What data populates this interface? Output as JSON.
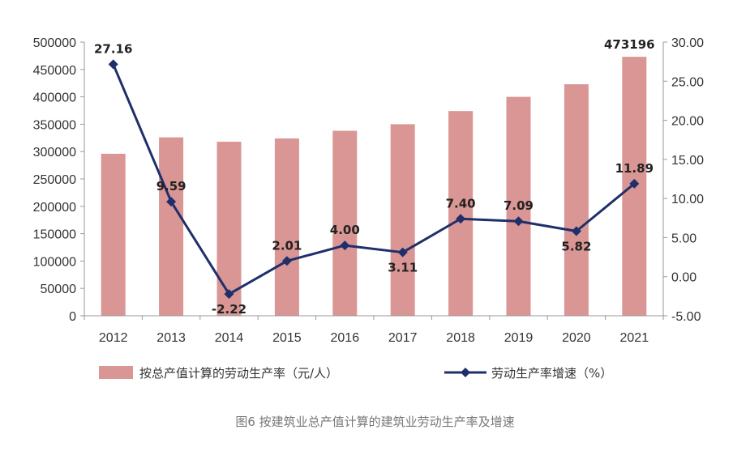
{
  "chart_data": {
    "type": "bar",
    "categories": [
      "2012",
      "2013",
      "2014",
      "2015",
      "2016",
      "2017",
      "2018",
      "2019",
      "2020",
      "2021"
    ],
    "series": [
      {
        "name": "按总产值计算的劳动生产率（元/人）",
        "type": "bar",
        "axis": "left",
        "color": "#d99694",
        "values": [
          296000,
          326000,
          318000,
          324000,
          338000,
          350000,
          374000,
          400000,
          423000,
          473196
        ]
      },
      {
        "name": "劳动生产率增速（%）",
        "type": "line",
        "axis": "right",
        "color": "#1f2f6b",
        "values": [
          27.16,
          9.59,
          -2.22,
          2.01,
          4.0,
          3.11,
          7.4,
          7.09,
          5.82,
          11.89
        ]
      }
    ],
    "bar_value_labels": [
      null,
      null,
      null,
      null,
      null,
      null,
      null,
      null,
      null,
      "473196"
    ],
    "line_value_labels": [
      "27.16",
      "9.59",
      "-2.22",
      "2.01",
      "4.00",
      "3.11",
      "7.40",
      "7.09",
      "5.82",
      "11.89"
    ],
    "y_left": {
      "lim": [
        0,
        500000
      ],
      "ticks": [
        "0",
        "50000",
        "100000",
        "150000",
        "200000",
        "250000",
        "300000",
        "350000",
        "400000",
        "450000",
        "500000"
      ]
    },
    "y_right": {
      "lim": [
        -5,
        30
      ],
      "ticks": [
        "-5.00",
        "0.00",
        "5.00",
        "10.00",
        "15.00",
        "20.00",
        "25.00",
        "30.00"
      ]
    },
    "grid": false,
    "legend_position": "bottom",
    "caption": "图6 按建筑业总产值计算的建筑业劳动生产率及增速"
  }
}
